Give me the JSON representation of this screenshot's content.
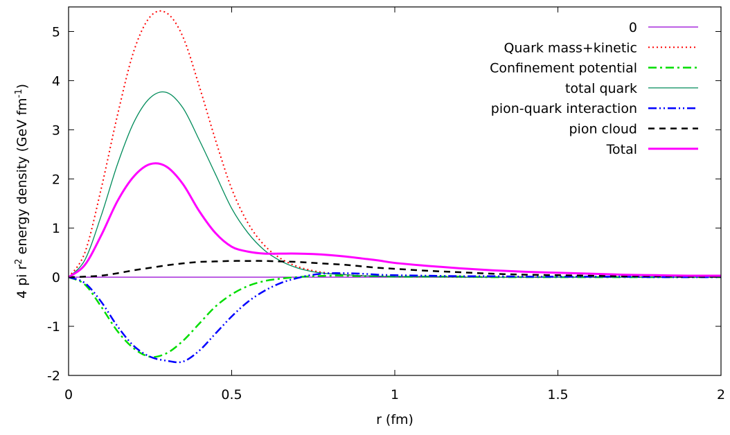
{
  "chart_data": {
    "type": "line",
    "xlabel": "r (fm)",
    "ylabel_parts": {
      "prefix": "4 pi r",
      "sup1": "2",
      "middle": " energy density (GeV fm",
      "sup2": "-1",
      "suffix": ")"
    },
    "xlim": [
      0,
      2
    ],
    "ylim": [
      -2,
      5.5
    ],
    "x_ticks": [
      0,
      0.5,
      1,
      1.5,
      2
    ],
    "x_tick_labels": [
      "0",
      "0.5",
      "1",
      "1.5",
      "2"
    ],
    "y_ticks": [
      -2,
      -1,
      0,
      1,
      2,
      3,
      4,
      5
    ],
    "y_tick_labels": [
      "-2",
      "-1",
      "0",
      "1",
      "2",
      "3",
      "4",
      "5"
    ],
    "grid": false,
    "legend_position": "top-right",
    "x": [
      0,
      0.05,
      0.1,
      0.15,
      0.2,
      0.25,
      0.3,
      0.35,
      0.4,
      0.45,
      0.5,
      0.55,
      0.6,
      0.65,
      0.7,
      0.75,
      0.8,
      0.85,
      0.9,
      0.95,
      1.0,
      1.1,
      1.2,
      1.3,
      1.4,
      1.5,
      1.6,
      1.7,
      1.8,
      1.9,
      2.0
    ],
    "series": [
      {
        "name": "0",
        "color": "#9400d3",
        "dash": "",
        "width": 1.3,
        "values": [
          0,
          0,
          0,
          0,
          0,
          0,
          0,
          0,
          0,
          0,
          0,
          0,
          0,
          0,
          0,
          0,
          0,
          0,
          0,
          0,
          0,
          0,
          0,
          0,
          0,
          0,
          0,
          0,
          0,
          0,
          0
        ]
      },
      {
        "name": "Quark mass+kinetic",
        "color": "#ff0000",
        "dash": "2,4",
        "width": 2,
        "values": [
          0,
          0.5,
          1.8,
          3.3,
          4.6,
          5.3,
          5.38,
          4.9,
          3.9,
          2.8,
          1.8,
          1.1,
          0.65,
          0.38,
          0.22,
          0.13,
          0.08,
          0.05,
          0.03,
          0.02,
          0.01,
          0.01,
          0.0,
          0.0,
          0.0,
          0.0,
          0.0,
          0.0,
          0.0,
          0.0,
          0.0
        ]
      },
      {
        "name": "Confinement potential",
        "color": "#00dd00",
        "dash": "12,5,3,5",
        "width": 2.5,
        "values": [
          0,
          -0.15,
          -0.6,
          -1.1,
          -1.45,
          -1.62,
          -1.55,
          -1.3,
          -0.95,
          -0.6,
          -0.35,
          -0.18,
          -0.08,
          -0.03,
          0.0,
          0.02,
          0.03,
          0.03,
          0.02,
          0.02,
          0.01,
          0.01,
          0.01,
          0.0,
          0.0,
          0.0,
          0.0,
          0.0,
          0.0,
          0.0,
          0.0
        ]
      },
      {
        "name": "total quark",
        "color": "#008b5a",
        "dash": "",
        "width": 1.3,
        "values": [
          0,
          0.35,
          1.25,
          2.3,
          3.15,
          3.65,
          3.76,
          3.45,
          2.8,
          2.1,
          1.4,
          0.9,
          0.55,
          0.33,
          0.19,
          0.11,
          0.07,
          0.05,
          0.03,
          0.02,
          0.01,
          0.01,
          0.0,
          0.0,
          0.0,
          0.0,
          0.0,
          0.0,
          0.0,
          0.0,
          0.0
        ]
      },
      {
        "name": "pion-quark interaction",
        "color": "#0000ff",
        "dash": "12,4,2,4,2,4",
        "width": 2.5,
        "values": [
          0,
          -0.12,
          -0.5,
          -1.0,
          -1.4,
          -1.62,
          -1.7,
          -1.72,
          -1.5,
          -1.15,
          -0.8,
          -0.5,
          -0.28,
          -0.12,
          -0.02,
          0.05,
          0.08,
          0.08,
          0.07,
          0.05,
          0.04,
          0.03,
          0.02,
          0.02,
          0.01,
          0.01,
          0.01,
          0.01,
          0.0,
          0.0,
          0.0
        ]
      },
      {
        "name": "pion cloud",
        "color": "#000000",
        "dash": "9,7",
        "width": 2.5,
        "values": [
          0,
          0.01,
          0.03,
          0.08,
          0.14,
          0.19,
          0.24,
          0.28,
          0.31,
          0.32,
          0.33,
          0.33,
          0.33,
          0.32,
          0.31,
          0.29,
          0.27,
          0.25,
          0.22,
          0.19,
          0.17,
          0.13,
          0.1,
          0.07,
          0.05,
          0.04,
          0.03,
          0.02,
          0.02,
          0.01,
          0.01
        ]
      },
      {
        "name": "Total",
        "color": "#ff00ff",
        "dash": "",
        "width": 3,
        "values": [
          0,
          0.25,
          0.85,
          1.55,
          2.05,
          2.3,
          2.25,
          1.9,
          1.35,
          0.9,
          0.62,
          0.52,
          0.48,
          0.48,
          0.48,
          0.47,
          0.45,
          0.42,
          0.38,
          0.34,
          0.29,
          0.23,
          0.18,
          0.14,
          0.11,
          0.09,
          0.07,
          0.05,
          0.04,
          0.03,
          0.03
        ]
      }
    ]
  }
}
